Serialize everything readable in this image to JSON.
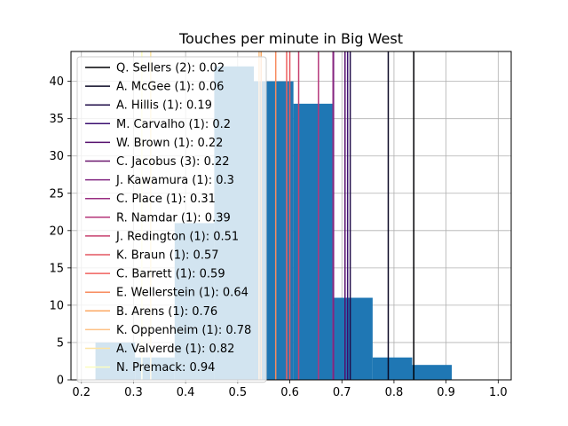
{
  "chart_data": {
    "type": "bar",
    "title": "Touches per minute in Big West",
    "xlabel": "",
    "ylabel": "",
    "xlim": [
      0.18,
      1.025
    ],
    "ylim": [
      0,
      44
    ],
    "xticks": [
      "0.2",
      "0.3",
      "0.4",
      "0.5",
      "0.6",
      "0.7",
      "0.8",
      "0.9",
      "1.0"
    ],
    "xtick_values": [
      0.2,
      0.3,
      0.4,
      0.5,
      0.6,
      0.7,
      0.8,
      0.9,
      1.0
    ],
    "yticks": [
      "0",
      "5",
      "10",
      "15",
      "20",
      "25",
      "30",
      "35",
      "40"
    ],
    "ytick_values": [
      0,
      5,
      10,
      15,
      20,
      25,
      30,
      35,
      40
    ],
    "grid": true,
    "bar_color": "#1f77b4",
    "histogram": {
      "bin_edges": [
        0.227,
        0.303,
        0.379,
        0.455,
        0.531,
        0.607,
        0.683,
        0.759,
        0.835,
        0.911,
        0.987
      ],
      "counts": [
        5,
        3,
        21,
        42,
        40,
        37,
        11,
        3,
        2,
        0
      ]
    },
    "legend_position": "upper-left",
    "reference_lines": [
      {
        "label": "Q. Sellers (2): 0.02",
        "x": 0.838,
        "color": "#000004"
      },
      {
        "label": "A. McGee (1): 0.06",
        "x": 0.789,
        "color": "#0b0924"
      },
      {
        "label": "A. Hillis (1): 0.19",
        "x": 0.716,
        "color": "#1f0c48"
      },
      {
        "label": "M. Carvalho (1): 0.2",
        "x": 0.711,
        "color": "#3b0f70"
      },
      {
        "label": "W. Brown (1): 0.22",
        "x": 0.706,
        "color": "#550f6d"
      },
      {
        "label": "C. Jacobus (3): 0.22",
        "x": 0.706,
        "color": "#6a176e"
      },
      {
        "label": "J. Kawamura (1): 0.3",
        "x": 0.684,
        "color": "#822681"
      },
      {
        "label": "C. Place (1): 0.31",
        "x": 0.683,
        "color": "#982d80"
      },
      {
        "label": "R. Namdar (1): 0.39",
        "x": 0.655,
        "color": "#b5367a"
      },
      {
        "label": "J. Redington (1): 0.51",
        "x": 0.617,
        "color": "#c8406e"
      },
      {
        "label": "K. Braun (1): 0.57",
        "x": 0.6,
        "color": "#e35760"
      },
      {
        "label": "C. Barrett (1): 0.59",
        "x": 0.594,
        "color": "#f1605d"
      },
      {
        "label": "E. Wellerstein (1): 0.64",
        "x": 0.573,
        "color": "#f88b5e"
      },
      {
        "label": "B. Arens (1): 0.76",
        "x": 0.545,
        "color": "#fca964"
      },
      {
        "label": "K. Oppenheim (1): 0.78",
        "x": 0.541,
        "color": "#fec287"
      },
      {
        "label": "A. Valverde (1): 0.82",
        "x": 0.333,
        "color": "#fde4a2"
      },
      {
        "label": "N. Premack: 0.94",
        "x": 0.316,
        "color": "#fcfdbf"
      }
    ]
  }
}
